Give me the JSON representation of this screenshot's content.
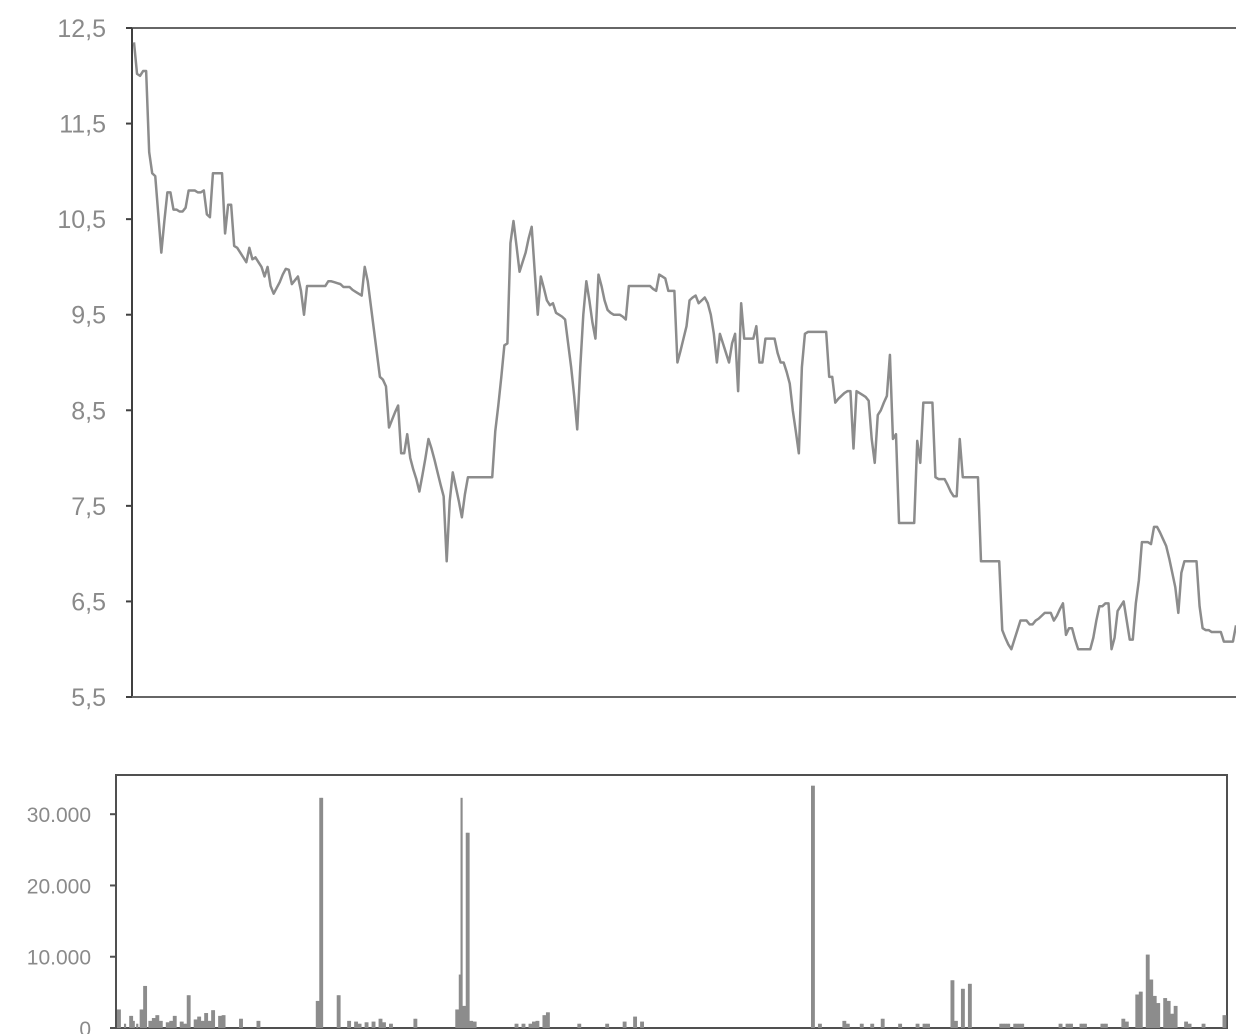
{
  "chart_data": [
    {
      "type": "line",
      "title": "",
      "xlabel": "",
      "ylabel": "",
      "ylim": [
        5.5,
        12.5
      ],
      "yticks": [
        "12,5",
        "11,5",
        "10,5",
        "9,5",
        "8,5",
        "7,5",
        "6,5",
        "5,5"
      ],
      "grid": false,
      "color": "#8c8c8c",
      "series": [
        {
          "values": [
            12.35,
            12.02,
            12.0,
            12.05,
            12.05,
            11.2,
            10.98,
            10.95,
            10.55,
            10.15,
            10.48,
            10.78,
            10.78,
            10.6,
            10.6,
            10.58,
            10.58,
            10.62,
            10.8,
            10.8,
            10.8,
            10.78,
            10.78,
            10.8,
            10.55,
            10.52,
            10.98,
            10.98,
            10.98,
            10.98,
            10.35,
            10.65,
            10.65,
            10.22,
            10.2,
            10.15,
            10.1,
            10.05,
            10.2,
            10.08,
            10.1,
            10.05,
            10.0,
            9.9,
            10.0,
            9.8,
            9.72,
            9.78,
            9.84,
            9.92,
            9.98,
            9.97,
            9.82,
            9.86,
            9.9,
            9.75,
            9.5,
            9.8,
            9.8,
            9.8,
            9.8,
            9.8,
            9.8,
            9.8,
            9.85,
            9.85,
            9.84,
            9.83,
            9.82,
            9.79,
            9.79,
            9.79,
            9.76,
            9.74,
            9.72,
            9.7,
            10.0,
            9.85,
            9.6,
            9.35,
            9.1,
            8.85,
            8.82,
            8.75,
            8.32,
            8.4,
            8.48,
            8.55,
            8.05,
            8.05,
            8.25,
            8.0,
            7.88,
            7.78,
            7.65,
            7.82,
            8.0,
            8.2,
            8.1,
            7.98,
            7.85,
            7.72,
            7.6,
            6.92,
            7.55,
            7.85,
            7.7,
            7.55,
            7.38,
            7.62,
            7.8,
            7.8,
            7.8,
            7.8,
            7.8,
            7.8,
            7.8,
            7.8,
            7.8,
            8.28,
            8.55,
            8.85,
            9.18,
            9.2,
            10.25,
            10.48,
            10.22,
            9.95,
            10.05,
            10.15,
            10.3,
            10.42,
            9.95,
            9.5,
            9.9,
            9.78,
            9.65,
            9.6,
            9.62,
            9.52,
            9.5,
            9.48,
            9.45,
            9.2,
            8.95,
            8.65,
            8.3,
            8.95,
            9.5,
            9.85,
            9.65,
            9.42,
            9.25,
            9.92,
            9.8,
            9.65,
            9.55,
            9.52,
            9.5,
            9.5,
            9.5,
            9.48,
            9.45,
            9.8,
            9.8,
            9.8,
            9.8,
            9.8,
            9.8,
            9.8,
            9.8,
            9.77,
            9.75,
            9.92,
            9.9,
            9.88,
            9.75,
            9.75,
            9.75,
            9.0,
            9.12,
            9.25,
            9.38,
            9.65,
            9.68,
            9.7,
            9.62,
            9.65,
            9.68,
            9.62,
            9.5,
            9.3,
            9.0,
            9.3,
            9.2,
            9.1,
            9.0,
            9.2,
            9.3,
            8.7,
            9.62,
            9.25,
            9.25,
            9.25,
            9.25,
            9.38,
            9.0,
            9.0,
            9.25,
            9.25,
            9.25,
            9.25,
            9.1,
            9.0,
            9.0,
            8.9,
            8.78,
            8.5,
            8.28,
            8.05,
            8.95,
            9.3,
            9.32,
            9.32,
            9.32,
            9.32,
            9.32,
            9.32,
            9.32,
            8.85,
            8.85,
            8.58,
            8.62,
            8.65,
            8.68,
            8.7,
            8.7,
            8.1,
            8.7,
            8.68,
            8.66,
            8.64,
            8.6,
            8.2,
            7.95,
            8.45,
            8.5,
            8.58,
            8.65,
            9.08,
            8.2,
            8.25,
            7.32,
            7.32,
            7.32,
            7.32,
            7.32,
            7.32,
            8.18,
            7.95,
            8.58,
            8.58,
            8.58,
            8.58,
            7.8,
            7.78,
            7.78,
            7.78,
            7.72,
            7.65,
            7.6,
            7.6,
            8.2,
            7.8,
            7.8,
            7.8,
            7.8,
            7.8,
            7.8,
            6.92,
            6.92,
            6.92,
            6.92,
            6.92,
            6.92,
            6.92,
            6.2,
            6.12,
            6.05,
            6.0,
            6.1,
            6.2,
            6.3,
            6.3,
            6.3,
            6.26,
            6.26,
            6.3,
            6.32,
            6.35,
            6.38,
            6.38,
            6.38,
            6.3,
            6.35,
            6.42,
            6.48,
            6.15,
            6.22,
            6.22,
            6.1,
            6.0,
            6.0,
            6.0,
            6.0,
            6.0,
            6.12,
            6.3,
            6.45,
            6.45,
            6.48,
            6.48,
            6.0,
            6.12,
            6.4,
            6.45,
            6.5,
            6.3,
            6.1,
            6.1,
            6.48,
            6.72,
            7.12,
            7.12,
            7.12,
            7.1,
            7.28,
            7.28,
            7.22,
            7.15,
            7.08,
            6.95,
            6.8,
            6.65,
            6.38,
            6.8,
            6.92,
            6.92,
            6.92,
            6.92,
            6.92,
            6.45,
            6.22,
            6.2,
            6.2,
            6.18,
            6.18,
            6.18,
            6.18,
            6.08,
            6.08,
            6.08,
            6.08,
            6.25
          ]
        }
      ]
    },
    {
      "type": "bar",
      "title": "",
      "xlabel": "",
      "ylabel": "",
      "ylim": [
        0,
        35500
      ],
      "yticks": [
        "0",
        "10.000",
        "20.000",
        "30.000"
      ],
      "grid": false,
      "color": "#8c8c8c",
      "values": [
        2600,
        2600,
        0,
        0,
        600,
        0,
        0,
        1700,
        1700,
        1000,
        0,
        600,
        0,
        2600,
        2600,
        5900,
        5900,
        0,
        1000,
        1000,
        1400,
        1400,
        1800,
        1800,
        1000,
        1000,
        0,
        0,
        800,
        800,
        1000,
        1000,
        1700,
        1700,
        0,
        0,
        900,
        900,
        600,
        600,
        4600,
        4600,
        0,
        0,
        1200,
        1200,
        1600,
        1600,
        1000,
        1000,
        2100,
        2100,
        1000,
        1000,
        2500,
        2500,
        0,
        0,
        1700,
        1700,
        1800,
        1800,
        0,
        0,
        0,
        0,
        0,
        0,
        0,
        0,
        1300,
        1300,
        0,
        0,
        0,
        0,
        0,
        0,
        0,
        0,
        1000,
        1000,
        0,
        0,
        0,
        0,
        0,
        0,
        0,
        0,
        0,
        0,
        0,
        0,
        0,
        0,
        0,
        0,
        0,
        0,
        0,
        0,
        0,
        0,
        0,
        0,
        0,
        0,
        0,
        0,
        0,
        0,
        0,
        0,
        3800,
        3800,
        32300,
        32300,
        0,
        0,
        0,
        0,
        0,
        0,
        0,
        0,
        4600,
        4600,
        0,
        0,
        0,
        0,
        1000,
        1000,
        0,
        0,
        900,
        900,
        600,
        600,
        0,
        0,
        800,
        800,
        0,
        0,
        900,
        900,
        0,
        0,
        1300,
        1300,
        800,
        800,
        0,
        0,
        600,
        600,
        0,
        0,
        0,
        0,
        0,
        0,
        0,
        0,
        0,
        0,
        0,
        0,
        1300,
        1300,
        0,
        0,
        0,
        0,
        0,
        0,
        0,
        0,
        0,
        0,
        0,
        0,
        0,
        0,
        0,
        0,
        0,
        0,
        0,
        0,
        0,
        0,
        2600,
        2600,
        7500,
        32300,
        3100,
        3100,
        27400,
        27400,
        1000,
        1000,
        900,
        900,
        0,
        0,
        0,
        0,
        0,
        0,
        0,
        0,
        0,
        0,
        0,
        0,
        0,
        0,
        0,
        0,
        0,
        0,
        0,
        0,
        0,
        0,
        600,
        600,
        0,
        0,
        600,
        600,
        0,
        0,
        600,
        600,
        900,
        900,
        1000,
        1000,
        0,
        0,
        1800,
        1800,
        2200,
        2200,
        0,
        0,
        0,
        0,
        0,
        0,
        0,
        0,
        0,
        0,
        0,
        0,
        0,
        0,
        0,
        0,
        600,
        600,
        0,
        0,
        0,
        0,
        0,
        0,
        0,
        0,
        0,
        0,
        0,
        0,
        0,
        0,
        600,
        600,
        0,
        0,
        0,
        0,
        0,
        0,
        0,
        0,
        900,
        900,
        0,
        0,
        0,
        0,
        1600,
        1600,
        0,
        0,
        900,
        900,
        0,
        0,
        0,
        0,
        0,
        0,
        0,
        0,
        0,
        0,
        0,
        0,
        0,
        0,
        0,
        0,
        0,
        0,
        0,
        0,
        0,
        0,
        0,
        0,
        0,
        0,
        0,
        0,
        0,
        0,
        0,
        0,
        0,
        0,
        0,
        0,
        0,
        0,
        0,
        0,
        0,
        0,
        0,
        0,
        0,
        0,
        0,
        0,
        0,
        0,
        0,
        0,
        0,
        0,
        0,
        0,
        0,
        0,
        0,
        0,
        0,
        0,
        0,
        0,
        0,
        0,
        0,
        0,
        0,
        0,
        0,
        0,
        0,
        0,
        0,
        0,
        0,
        0,
        0,
        0,
        0,
        0,
        0,
        0,
        0,
        0,
        0,
        0,
        0,
        0,
        0,
        0,
        0,
        0,
        0,
        0,
        34000,
        34000,
        0,
        0,
        600,
        600,
        0,
        0,
        0,
        0,
        0,
        0,
        0,
        0,
        0,
        0,
        0,
        0,
        1000,
        1000,
        600,
        600,
        0,
        0,
        0,
        0,
        0,
        0,
        600,
        600,
        0,
        0,
        0,
        0,
        600,
        600,
        0,
        0,
        0,
        0,
        1300,
        1300,
        0,
        0,
        0,
        0,
        0,
        0,
        0,
        0,
        600,
        600,
        0,
        0,
        0,
        0,
        0,
        0,
        0,
        0,
        600,
        600,
        0,
        0,
        600,
        600,
        600,
        600,
        0,
        0,
        0,
        0,
        0,
        0,
        0,
        0,
        0,
        0,
        0,
        0,
        6700,
        6700,
        1000,
        1000,
        0,
        0,
        5500,
        5500,
        0,
        0,
        6200,
        6200,
        0,
        0,
        0,
        0,
        0,
        0,
        0,
        0,
        0,
        0,
        0,
        0,
        0,
        0,
        0,
        0,
        600,
        600,
        600,
        600,
        600,
        600,
        0,
        0,
        600,
        600,
        600,
        600,
        600,
        600,
        0,
        0,
        0,
        0,
        0,
        0,
        0,
        0,
        0,
        0,
        0,
        0,
        0,
        0,
        0,
        0,
        0,
        0,
        0,
        0,
        600,
        600,
        0,
        0,
        600,
        600,
        600,
        600,
        0,
        0,
        0,
        0,
        600,
        600,
        600,
        600,
        0,
        0,
        0,
        0,
        0,
        0,
        0,
        0,
        600,
        600,
        600,
        600,
        0,
        0,
        0,
        0,
        0,
        0,
        0,
        0,
        1300,
        1300,
        900,
        900,
        0,
        0,
        0,
        0,
        4700,
        4700,
        5100,
        5100,
        0,
        0,
        10300,
        10300,
        6800,
        6800,
        4500,
        4500,
        3500,
        3500,
        0,
        0,
        4200,
        4200,
        3800,
        3800,
        2000,
        2000,
        3100,
        3100,
        0,
        0,
        0,
        0,
        900,
        900,
        600,
        600,
        0,
        0,
        0,
        0,
        0,
        0,
        600,
        600,
        0,
        0,
        0,
        0,
        0,
        0,
        0,
        0,
        0,
        0,
        1800,
        1800
      ]
    }
  ]
}
